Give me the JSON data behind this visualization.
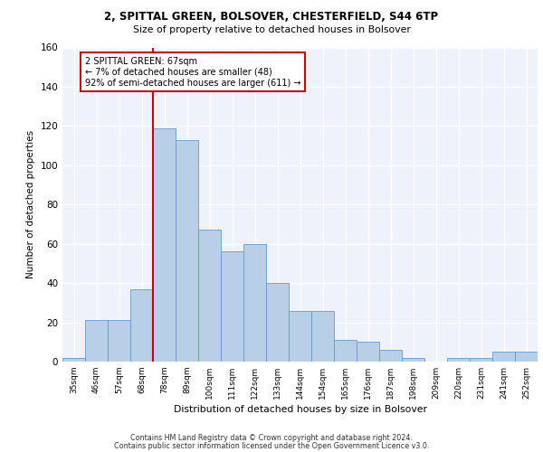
{
  "title1": "2, SPITTAL GREEN, BOLSOVER, CHESTERFIELD, S44 6TP",
  "title2": "Size of property relative to detached houses in Bolsover",
  "xlabel": "Distribution of detached houses by size in Bolsover",
  "ylabel": "Number of detached properties",
  "bar_labels": [
    "35sqm",
    "46sqm",
    "57sqm",
    "68sqm",
    "78sqm",
    "89sqm",
    "100sqm",
    "111sqm",
    "122sqm",
    "133sqm",
    "144sqm",
    "154sqm",
    "165sqm",
    "176sqm",
    "187sqm",
    "198sqm",
    "209sqm",
    "220sqm",
    "231sqm",
    "241sqm",
    "252sqm"
  ],
  "bar_values": [
    2,
    21,
    21,
    37,
    119,
    113,
    67,
    56,
    60,
    40,
    26,
    26,
    11,
    10,
    6,
    2,
    0,
    2,
    2,
    5,
    5
  ],
  "bar_color": "#b8cfe8",
  "bar_edge_color": "#6699cc",
  "annotation_box_text": "2 SPITTAL GREEN: 67sqm\n← 7% of detached houses are smaller (48)\n92% of semi-detached houses are larger (611) →",
  "annotation_box_color": "#cc0000",
  "ylim": [
    0,
    160
  ],
  "yticks": [
    0,
    20,
    40,
    60,
    80,
    100,
    120,
    140,
    160
  ],
  "footer1": "Contains HM Land Registry data © Crown copyright and database right 2024.",
  "footer2": "Contains public sector information licensed under the Open Government Licence v3.0.",
  "bg_color": "#eef2fb",
  "grid_color": "#ffffff"
}
